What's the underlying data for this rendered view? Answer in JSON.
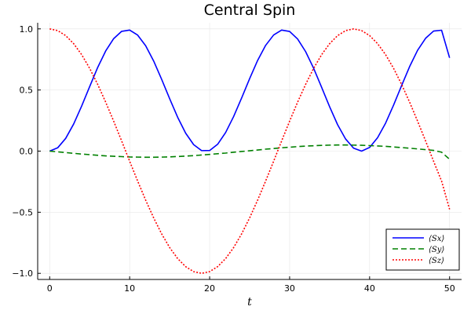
{
  "chart_data": {
    "type": "line",
    "title": "Central Spin",
    "xlabel": "t",
    "ylabel": "",
    "xlim": [
      -1.5,
      51.5
    ],
    "ylim": [
      -1.05,
      1.05
    ],
    "xticks": [
      0,
      10,
      20,
      30,
      40,
      50
    ],
    "xtick_labels": [
      "0",
      "10",
      "20",
      "30",
      "40",
      "50"
    ],
    "yticks": [
      -1.0,
      -0.5,
      0.0,
      0.5,
      1.0
    ],
    "ytick_labels": [
      "−1.0",
      "−0.5",
      "0.0",
      "0.5",
      "1.0"
    ],
    "grid": true,
    "legend_position": "bottom-right",
    "x": [
      0,
      1,
      2,
      3,
      4,
      5,
      6,
      7,
      8,
      9,
      10,
      11,
      12,
      13,
      14,
      15,
      16,
      17,
      18,
      19,
      20,
      21,
      22,
      23,
      24,
      25,
      26,
      27,
      28,
      29,
      30,
      31,
      32,
      33,
      34,
      35,
      36,
      37,
      38,
      39,
      40,
      41,
      42,
      43,
      44,
      45,
      46,
      47,
      48,
      49,
      50
    ],
    "series": [
      {
        "name": "⟨Sx⟩",
        "color": "#0000ff",
        "dash": "solid",
        "values": [
          0.0,
          0.027,
          0.104,
          0.222,
          0.369,
          0.528,
          0.684,
          0.819,
          0.92,
          0.98,
          0.99,
          0.949,
          0.862,
          0.737,
          0.587,
          0.429,
          0.277,
          0.147,
          0.053,
          0.004,
          0.005,
          0.056,
          0.152,
          0.283,
          0.435,
          0.593,
          0.742,
          0.865,
          0.95,
          0.99,
          0.979,
          0.917,
          0.814,
          0.678,
          0.522,
          0.363,
          0.216,
          0.099,
          0.024,
          0.0,
          0.03,
          0.11,
          0.229,
          0.377,
          0.536,
          0.691,
          0.825,
          0.923,
          0.982,
          0.989,
          0.763
        ]
      },
      {
        "name": "⟨Sy⟩",
        "color": "#008000",
        "dash": "dashed",
        "values": [
          0.0,
          -0.006,
          -0.012,
          -0.018,
          -0.024,
          -0.029,
          -0.034,
          -0.039,
          -0.042,
          -0.045,
          -0.048,
          -0.049,
          -0.05,
          -0.05,
          -0.049,
          -0.047,
          -0.044,
          -0.041,
          -0.037,
          -0.032,
          -0.027,
          -0.021,
          -0.016,
          -0.009,
          -0.003,
          0.003,
          0.009,
          0.016,
          0.021,
          0.027,
          0.032,
          0.037,
          0.041,
          0.044,
          0.047,
          0.049,
          0.05,
          0.05,
          0.049,
          0.048,
          0.045,
          0.042,
          0.039,
          0.034,
          0.029,
          0.024,
          0.018,
          0.012,
          0.006,
          -0.009,
          -0.067
        ]
      },
      {
        "name": "⟨Sz⟩",
        "color": "#ff0000",
        "dash": "dotted",
        "values": [
          1.0,
          0.986,
          0.945,
          0.879,
          0.789,
          0.677,
          0.546,
          0.401,
          0.245,
          0.083,
          -0.083,
          -0.245,
          -0.401,
          -0.546,
          -0.677,
          -0.789,
          -0.879,
          -0.945,
          -0.986,
          -1.0,
          -0.986,
          -0.945,
          -0.879,
          -0.789,
          -0.677,
          -0.546,
          -0.401,
          -0.245,
          -0.083,
          0.083,
          0.245,
          0.401,
          0.546,
          0.677,
          0.789,
          0.879,
          0.945,
          0.986,
          1.0,
          0.986,
          0.945,
          0.879,
          0.789,
          0.677,
          0.546,
          0.401,
          0.245,
          0.083,
          -0.083,
          -0.245,
          -0.476
        ]
      }
    ]
  }
}
